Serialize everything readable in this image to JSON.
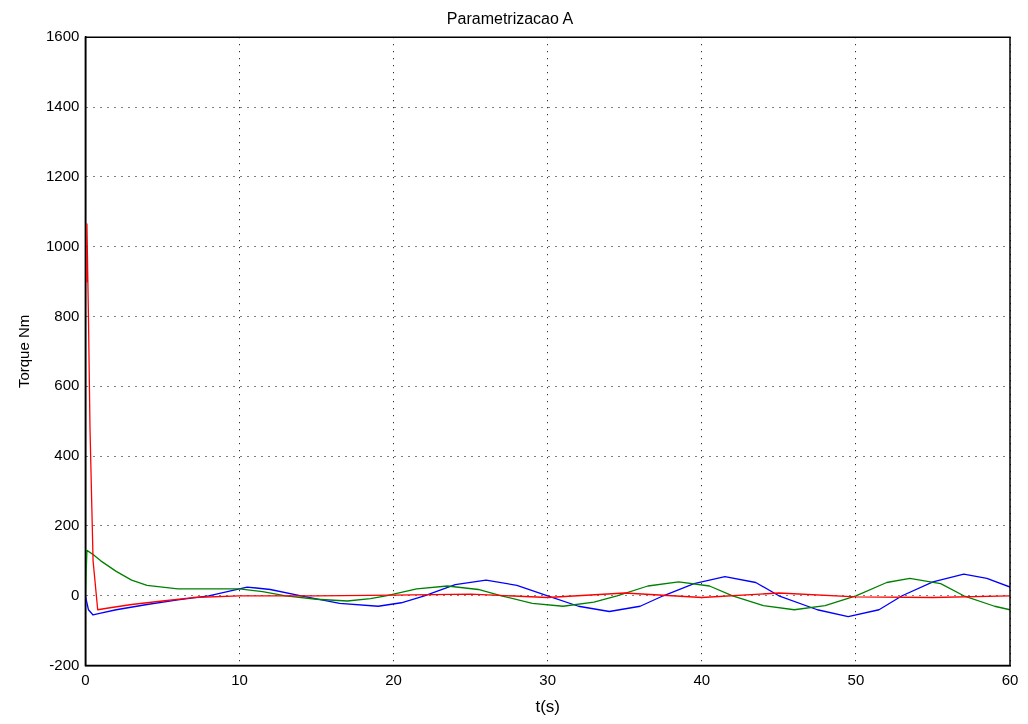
{
  "chart_data": {
    "type": "line",
    "title": "Parametrizacao A",
    "xlabel": "t(s)",
    "ylabel": "Torque Nm",
    "xlim": [
      0,
      60
    ],
    "xticks": [
      0,
      10,
      20,
      30,
      40,
      50,
      60
    ],
    "ylim": [
      -200,
      1600
    ],
    "yticks": [
      -200,
      0,
      200,
      400,
      600,
      800,
      1000,
      1200,
      1400,
      1600
    ],
    "grid": true,
    "legend": false,
    "marker": "none",
    "line_style": "solid",
    "series": [
      {
        "color": "#0000ff",
        "x": [
          0,
          0.2,
          0.5,
          1,
          2,
          4,
          6,
          8,
          10.5,
          12,
          14,
          16.5,
          19,
          20.5,
          22,
          24,
          26,
          28,
          30,
          32,
          34,
          36,
          37.5,
          39.5,
          41.5,
          43.5,
          45,
          47.5,
          49.5,
          51.5,
          53,
          55,
          57,
          58.5,
          60
        ],
        "values": [
          0,
          -40,
          -55,
          -50,
          -40,
          -25,
          -12,
          0,
          25,
          18,
          0,
          -22,
          -30,
          -20,
          0,
          32,
          45,
          30,
          0,
          -30,
          -45,
          -30,
          0,
          35,
          55,
          38,
          0,
          -40,
          -60,
          -40,
          0,
          40,
          62,
          50,
          25
        ]
      },
      {
        "color": "#008000",
        "x": [
          0,
          0.1,
          0.5,
          1,
          2,
          3,
          4,
          6,
          8,
          10,
          11.5,
          13,
          15,
          17,
          18.5,
          19.5,
          21.5,
          23.5,
          25.5,
          27,
          29,
          31,
          33,
          34.5,
          36.5,
          38.5,
          40.5,
          42,
          44,
          46,
          48,
          50,
          52,
          53.5,
          55.5,
          57,
          59,
          60
        ],
        "values": [
          0,
          130,
          118,
          100,
          70,
          45,
          30,
          20,
          20,
          20,
          12,
          0,
          -10,
          -15,
          -8,
          0,
          20,
          28,
          18,
          0,
          -22,
          -30,
          -18,
          0,
          28,
          40,
          28,
          0,
          -28,
          -40,
          -28,
          0,
          38,
          50,
          35,
          0,
          -30,
          -40
        ]
      },
      {
        "color": "#ff0000",
        "x": [
          0.05,
          0.1,
          0.2,
          0.3,
          0.5,
          0.8,
          1.5,
          3,
          5,
          7,
          10,
          15,
          20,
          25,
          30,
          35,
          40,
          45,
          50,
          55,
          60
        ],
        "values": [
          900,
          1065,
          800,
          480,
          100,
          -40,
          -35,
          -25,
          -15,
          -5,
          0,
          0,
          2,
          5,
          -5,
          8,
          -5,
          8,
          -3,
          -5,
          0
        ]
      }
    ]
  }
}
